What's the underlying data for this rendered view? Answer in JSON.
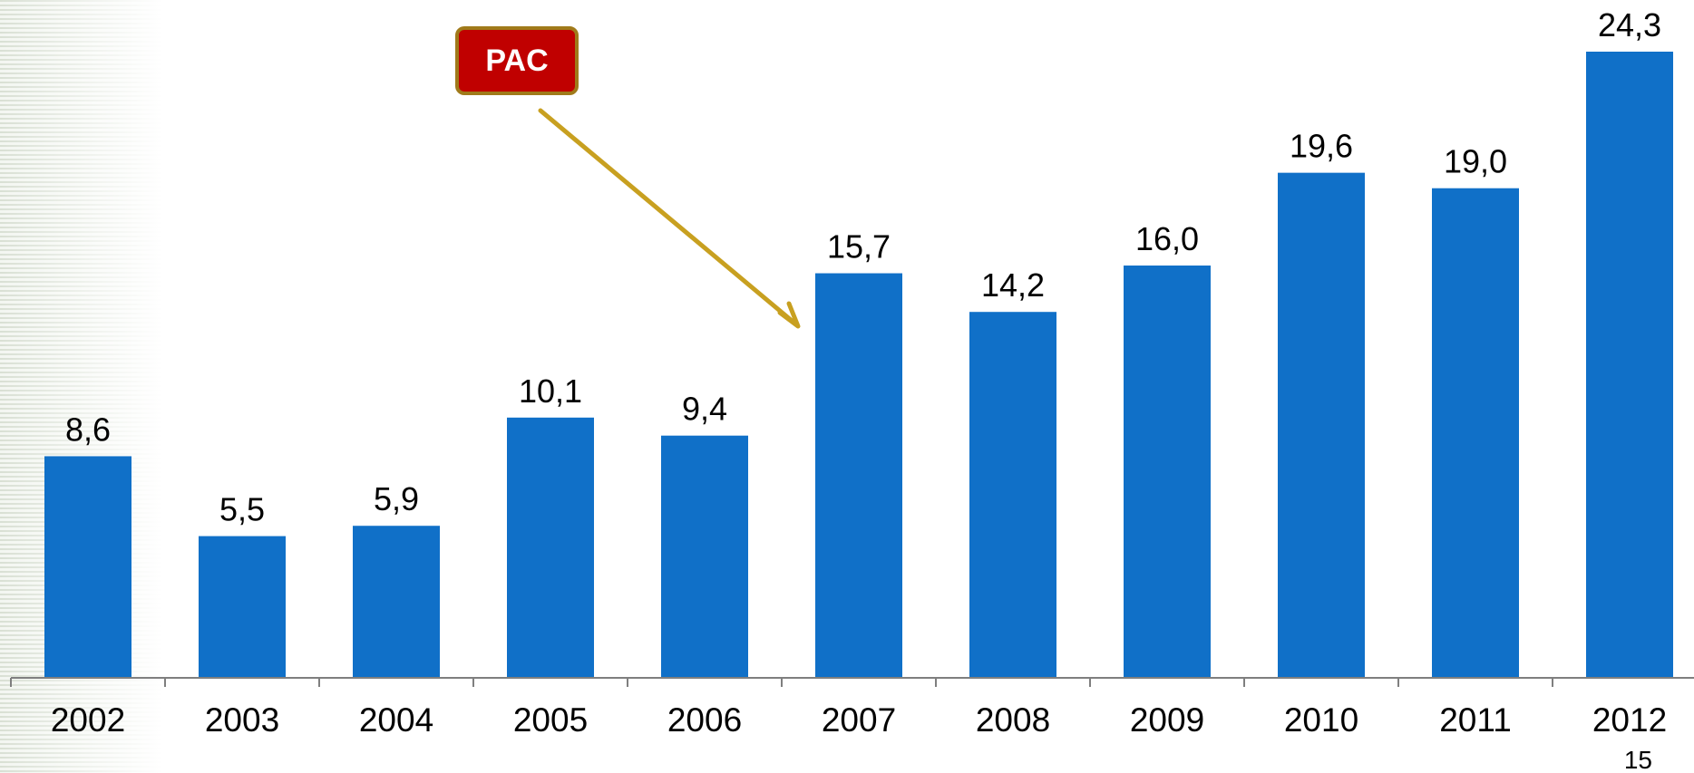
{
  "colors": {
    "bar": "#1070c8",
    "badge_fill": "#c00000",
    "badge_border": "#a07a1a",
    "arrow": "#c8a020",
    "axis": "#7f7f7f"
  },
  "annotation": {
    "label": "PAC"
  },
  "page_number": "15",
  "chart_data": {
    "type": "bar",
    "categories": [
      "2002",
      "2003",
      "2004",
      "2005",
      "2006",
      "2007",
      "2008",
      "2009",
      "2010",
      "2011",
      "2012"
    ],
    "values": [
      8.6,
      5.5,
      5.9,
      10.1,
      9.4,
      15.7,
      14.2,
      16.0,
      19.6,
      19.0,
      24.3
    ],
    "data_labels": [
      "8,6",
      "5,5",
      "5,9",
      "10,1",
      "9,4",
      "15,7",
      "14,2",
      "16,0",
      "19,6",
      "19,0",
      "24,3"
    ],
    "title": "",
    "xlabel": "",
    "ylabel": "",
    "ylim": [
      0,
      24.3
    ],
    "grid": false,
    "legend": "none",
    "annotations": [
      {
        "text": "PAC",
        "points_to": "2007"
      }
    ]
  }
}
